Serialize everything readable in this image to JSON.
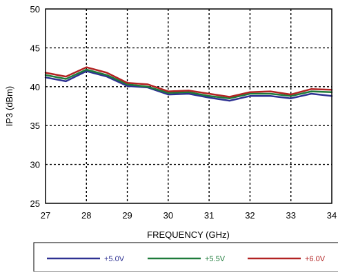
{
  "chart_data": {
    "type": "line",
    "title": "",
    "xlabel": "FREQUENCY (GHz)",
    "ylabel": "IP3 (dBm)",
    "xlim": [
      27,
      34
    ],
    "ylim": [
      25,
      50
    ],
    "xticks": [
      27,
      28,
      29,
      30,
      31,
      32,
      33,
      34
    ],
    "yticks": [
      25,
      30,
      35,
      40,
      45,
      50
    ],
    "grid": true,
    "grid_style": "dotted",
    "legend_position": "bottom",
    "x": [
      27,
      27.5,
      28,
      28.5,
      29,
      29.5,
      30,
      30.5,
      31,
      31.5,
      32,
      32.5,
      33,
      33.5,
      34
    ],
    "series": [
      {
        "name": "+5.0V",
        "color": "#2e3192",
        "values": [
          41.2,
          40.7,
          42.0,
          41.3,
          40.1,
          39.9,
          39.0,
          39.1,
          38.6,
          38.2,
          38.8,
          38.8,
          38.5,
          39.1,
          38.8
        ]
      },
      {
        "name": "+5.5V",
        "color": "#1e7b3a",
        "values": [
          41.5,
          41.0,
          42.2,
          41.5,
          40.3,
          40.0,
          39.2,
          39.3,
          38.8,
          38.5,
          39.1,
          39.1,
          38.8,
          39.4,
          39.3
        ]
      },
      {
        "name": "+6.0V",
        "color": "#b22222",
        "values": [
          41.8,
          41.3,
          42.5,
          41.8,
          40.5,
          40.3,
          39.4,
          39.5,
          39.1,
          38.7,
          39.3,
          39.4,
          39.0,
          39.7,
          39.6
        ]
      }
    ]
  }
}
